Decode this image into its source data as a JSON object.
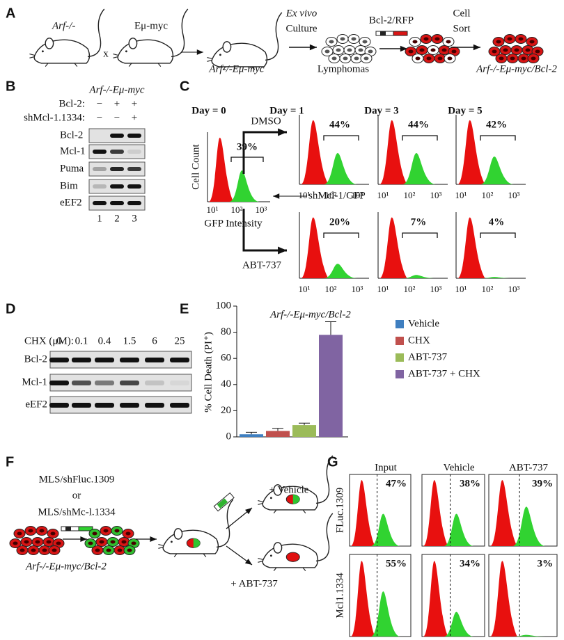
{
  "panel_labels": [
    "A",
    "B",
    "C",
    "D",
    "E",
    "F",
    "G"
  ],
  "panel_a": {
    "mouse1": "Arf-/-",
    "cross": "x",
    "mouse2": "Eμ-myc",
    "mouse3": "Arf-/-Eμ-myc",
    "step1": "Ex vivo",
    "step1b": "Culture",
    "lymphomas": "Lymphomas",
    "construct": "Bcl-2/RFP",
    "step3": "Cell",
    "step3b": "Sort",
    "result": "Arf-/-Eμ-myc/Bcl-2"
  },
  "panel_b": {
    "title": "Arf-/-Eμ-myc",
    "row_labels": [
      "Bcl-2:",
      "shMcl-1.1334:"
    ],
    "bcl2_signs": [
      "−",
      "+",
      "+"
    ],
    "sh_signs": [
      "−",
      "−",
      "+"
    ],
    "bands": [
      "Bcl-2",
      "Mcl-1",
      "Puma",
      "Bim",
      "eEF2"
    ],
    "lanes": [
      "1",
      "2",
      "3"
    ]
  },
  "panel_c": {
    "days": [
      "Day = 0",
      "Day = 1",
      "Day = 3",
      "Day = 5"
    ],
    "input_pct": "39%",
    "dmso": "DMSO",
    "abt": "ABT-737",
    "dmso_pct": [
      "44%",
      "44%",
      "42%"
    ],
    "abt_pct": [
      "20%",
      "7%",
      "4%"
    ],
    "y_label": "Cell Count",
    "x_label": "GFP Intensity",
    "arrow_label": "shMcl-1/GFP",
    "tick_labels": [
      "10¹",
      "10²",
      "10³"
    ]
  },
  "panel_d": {
    "cond_label": "CHX (μM):",
    "doses": [
      "0",
      "0.1",
      "0.4",
      "1.5",
      "6",
      "25"
    ],
    "bands": [
      "Bcl-2",
      "Mcl-1",
      "eEF2"
    ]
  },
  "chart_data": {
    "type": "bar",
    "title": "Arf-/-Eμ-myc/Bcl-2",
    "y_label": "% Cell Death (PI⁺)",
    "categories": [
      "Vehicle",
      "CHX",
      "ABT-737",
      "ABT-737 + CHX"
    ],
    "values": [
      2,
      4.5,
      9,
      78
    ],
    "errors": [
      1.5,
      2,
      1.5,
      10
    ],
    "colors": [
      "#3f7fc0",
      "#c0504d",
      "#9bbb59",
      "#8064a2"
    ],
    "ylim": [
      0,
      100
    ],
    "yticks": [
      0,
      20,
      40,
      60,
      80,
      100
    ]
  },
  "panel_f": {
    "line1": "MLS/shFluc.1309",
    "line2": "or",
    "line3": "MLS/shMc-l.1334",
    "cells": "Arf-/-Eμ-myc/Bcl-2",
    "vehicle": "+ Vehicle",
    "abt": "+ ABT-737"
  },
  "panel_g": {
    "columns": [
      "Input",
      "Vehicle",
      "ABT-737"
    ],
    "rows": [
      "FLuc.1309",
      "Mcl1.1334"
    ],
    "pct": [
      [
        "47%",
        "38%",
        "39%"
      ],
      [
        "55%",
        "34%",
        "3%"
      ]
    ]
  }
}
